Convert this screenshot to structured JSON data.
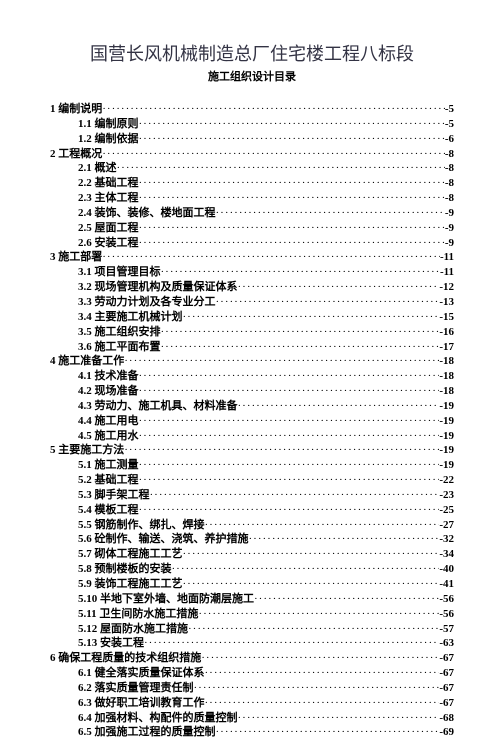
{
  "title": "国营长风机械制造总厂住宅楼工程八标段",
  "subtitle": "施工组织设计目录",
  "toc": [
    {
      "level": 1,
      "label": "1 编制说明",
      "page": "-5"
    },
    {
      "level": 2,
      "label": "1.1 编制原则",
      "page": "-5"
    },
    {
      "level": 2,
      "label": "1.2 编制依据",
      "page": "-6"
    },
    {
      "level": 1,
      "label": "2 工程概况",
      "page": "-8"
    },
    {
      "level": 2,
      "label": "2.1 概述",
      "page": "-8"
    },
    {
      "level": 2,
      "label": "2.2 基础工程",
      "page": "-8"
    },
    {
      "level": 2,
      "label": "2.3 主体工程",
      "page": "-8"
    },
    {
      "level": 2,
      "label": "2.4 装饰、装修、楼地面工程",
      "page": "-9"
    },
    {
      "level": 2,
      "label": "2.5 屋面工程",
      "page": "-9"
    },
    {
      "level": 2,
      "label": "2.6 安装工程",
      "page": "-9"
    },
    {
      "level": 1,
      "label": "3 施工部署",
      "page": "-11"
    },
    {
      "level": 2,
      "label": "3.1 项目管理目标",
      "page": "-11"
    },
    {
      "level": 2,
      "label": "3.2 现场管理机构及质量保证体系",
      "page": "-12"
    },
    {
      "level": 2,
      "label": "3.3 劳动力计划及各专业分工",
      "page": "-13"
    },
    {
      "level": 2,
      "label": "3.4 主要施工机械计划",
      "page": "-15"
    },
    {
      "level": 2,
      "label": "3.5 施工组织安排",
      "page": "-16"
    },
    {
      "level": 2,
      "label": "3.6 施工平面布置",
      "page": "-17"
    },
    {
      "level": 1,
      "label": "4 施工准备工作",
      "page": "-18"
    },
    {
      "level": 2,
      "label": "4.1 技术准备",
      "page": "-18"
    },
    {
      "level": 2,
      "label": "4.2 现场准备",
      "page": "-18"
    },
    {
      "level": 2,
      "label": "4.3 劳动力、施工机具、材料准备",
      "page": "-19"
    },
    {
      "level": 2,
      "label": "4.4 施工用电",
      "page": "-19"
    },
    {
      "level": 2,
      "label": "4.5 施工用水",
      "page": "-19"
    },
    {
      "level": 1,
      "label": "5 主要施工方法",
      "page": "-19"
    },
    {
      "level": 2,
      "label": "5.1 施工测量",
      "page": "-19"
    },
    {
      "level": 2,
      "label": "5.2 基础工程",
      "page": "-22"
    },
    {
      "level": 2,
      "label": "5.3 脚手架工程",
      "page": "-23"
    },
    {
      "level": 2,
      "label": "5.4 模板工程",
      "page": "-25"
    },
    {
      "level": 2,
      "label": "5.5 钢筋制作、绑扎、焊接",
      "page": "-27"
    },
    {
      "level": 2,
      "label": "5.6 砼制作、输送、浇筑、养护措施",
      "page": "-32"
    },
    {
      "level": 2,
      "label": "5.7 砌体工程施工工艺",
      "page": "-34"
    },
    {
      "level": 2,
      "label": "5.8 预制楼板的安装",
      "page": "-40"
    },
    {
      "level": 2,
      "label": "5.9 装饰工程施工工艺",
      "page": "-41"
    },
    {
      "level": 2,
      "label": "5.10 半地下室外墙、地面防潮层施工",
      "page": "-56"
    },
    {
      "level": 2,
      "label": "5.11 卫生间防水施工措施",
      "page": "-56"
    },
    {
      "level": 2,
      "label": "5.12 屋面防水施工措施",
      "page": "-57"
    },
    {
      "level": 2,
      "label": "5.13 安装工程",
      "page": "-63"
    },
    {
      "level": 1,
      "label": "6 确保工程质量的技术组织措施",
      "page": "-67"
    },
    {
      "level": 2,
      "label": "6.1 健全落实质量保证体系",
      "page": "-67"
    },
    {
      "level": 2,
      "label": "6.2 落实质量管理责任制",
      "page": "-67"
    },
    {
      "level": 2,
      "label": "6.3 做好职工培训教育工作",
      "page": "-67"
    },
    {
      "level": 2,
      "label": "6.4 加强材料、构配件的质量控制",
      "page": "-68"
    },
    {
      "level": 2,
      "label": "6.5 加强施工过程的质量控制",
      "page": "-69"
    }
  ]
}
